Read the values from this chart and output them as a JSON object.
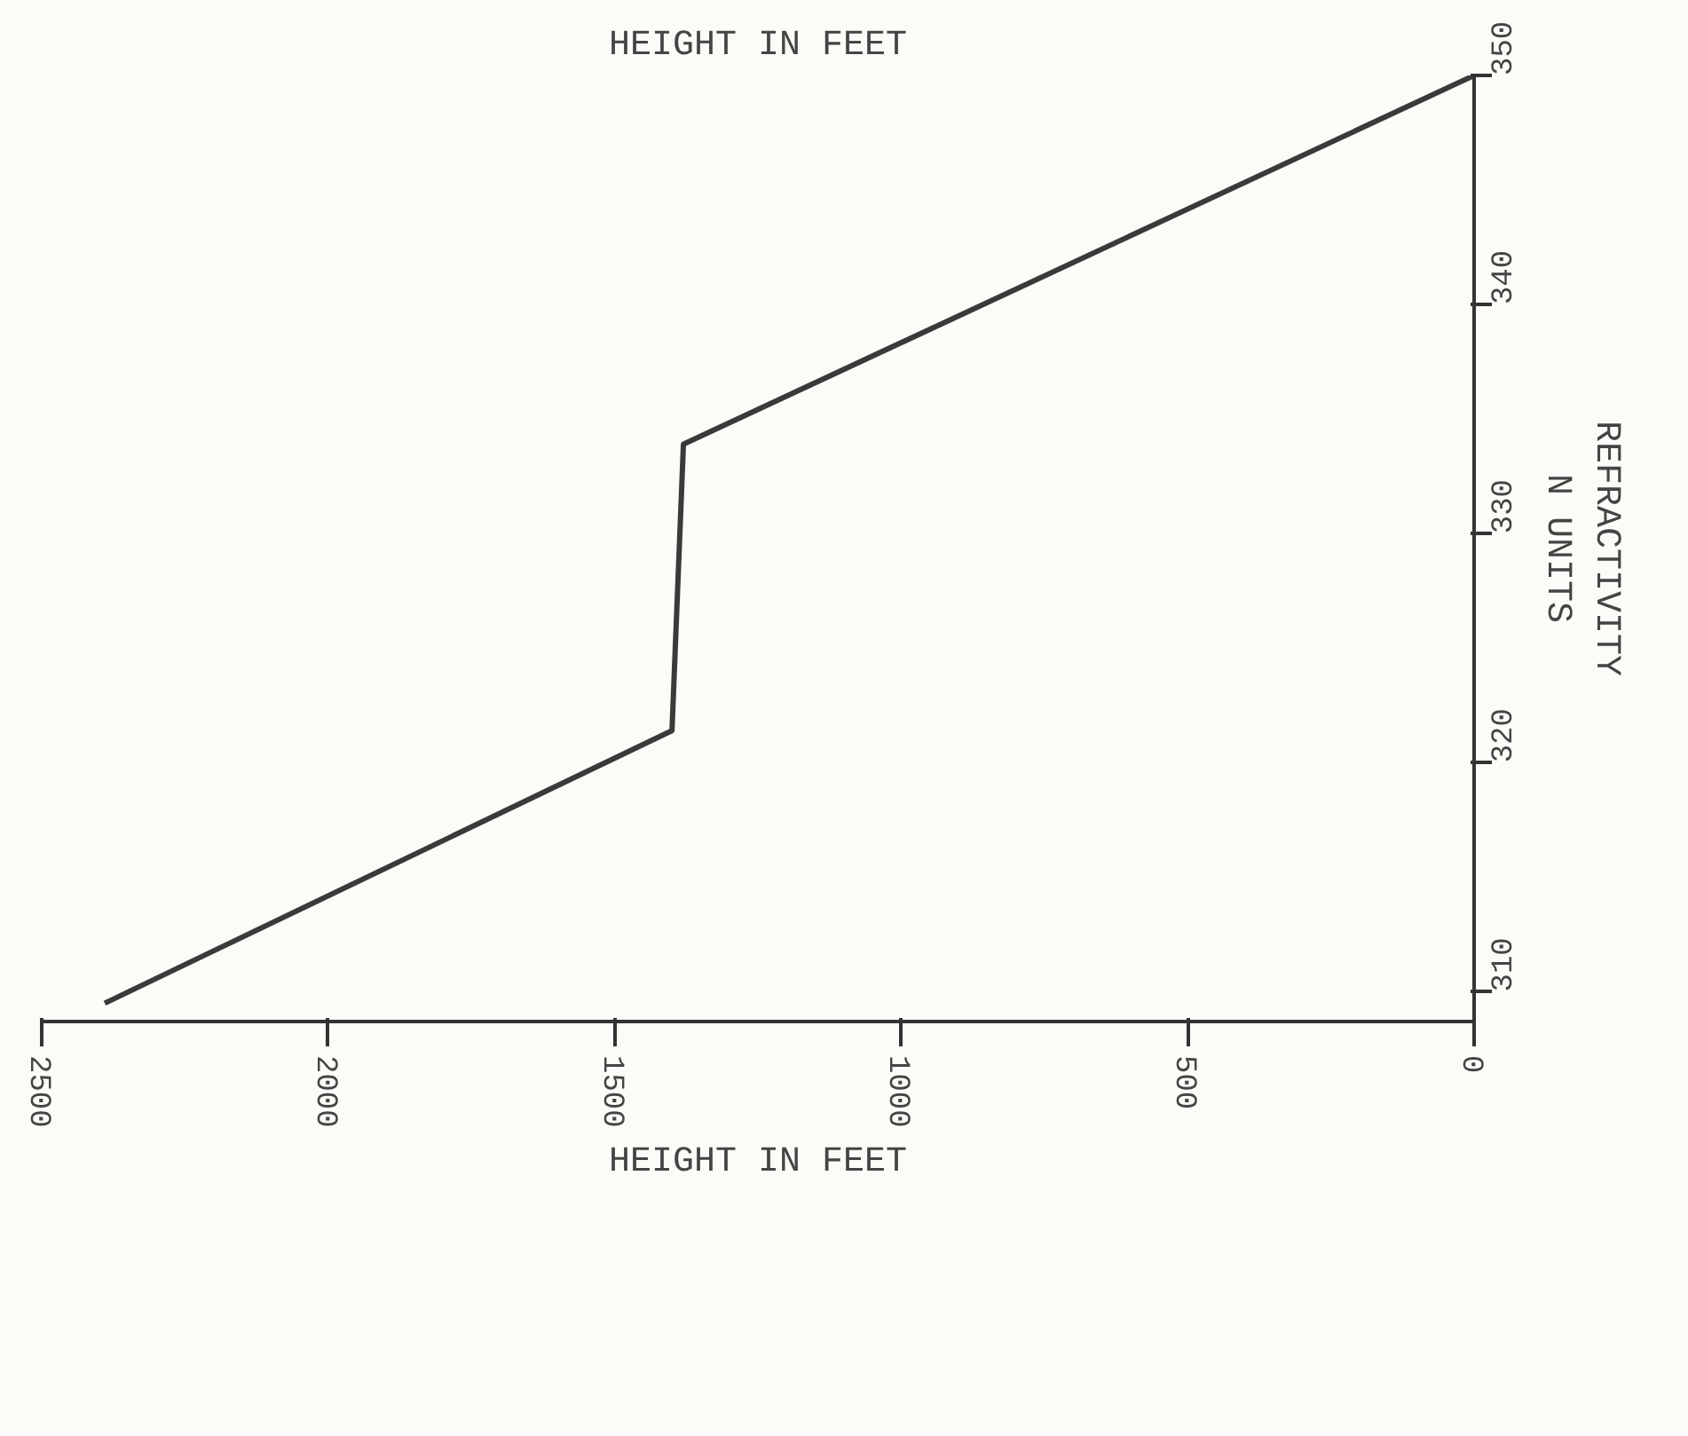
{
  "chart_data": {
    "type": "line",
    "title": "HEIGHT IN FEET",
    "xlabel": "HEIGHT IN FEET",
    "ylabel": "REFRACTIVITY\nN UNITS",
    "x": [
      2390,
      1400,
      1380,
      0
    ],
    "series": [
      {
        "color": "#3a3a3a",
        "values": [
          309.5,
          321.4,
          333.9,
          350
        ]
      }
    ],
    "xlim": [
      2500,
      0
    ],
    "ylim": [
      308.7,
      350
    ],
    "xticks": [
      2500,
      2000,
      1500,
      1000,
      500,
      0
    ],
    "yticks": [
      310,
      320,
      330,
      340,
      350
    ],
    "grid": false
  }
}
